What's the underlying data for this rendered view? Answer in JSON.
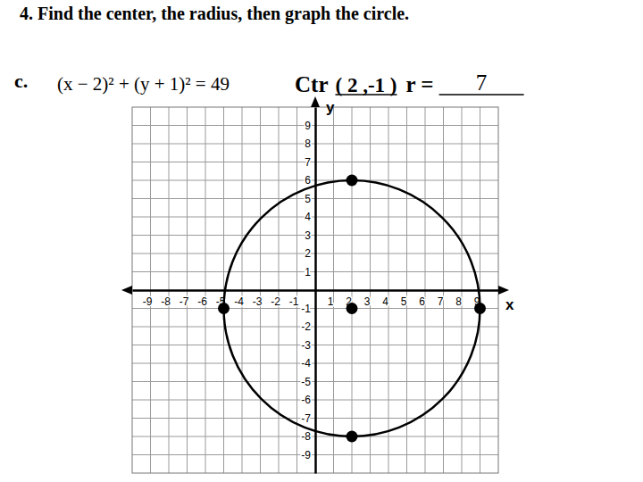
{
  "chart_data": {
    "type": "scatter",
    "title": "4. Find the center, the radius, then graph the circle.",
    "part": "c.",
    "equation": "(x − 2)² + (y + 1)² = 49",
    "center_label": "Ctr",
    "center_text": "( 2 ,-1 )",
    "radius_label": "r =",
    "radius_text": "7",
    "x_label": "x",
    "y_label": "y",
    "xlim": [
      -10,
      10
    ],
    "ylim": [
      -10,
      10
    ],
    "xticks": [
      -9,
      -8,
      -7,
      -6,
      -5,
      -4,
      -3,
      -2,
      -1,
      1,
      2,
      3,
      4,
      5,
      6,
      7,
      8,
      9
    ],
    "yticks": [
      -9,
      -8,
      -7,
      -6,
      -5,
      -4,
      -3,
      -2,
      -1,
      1,
      2,
      3,
      4,
      5,
      6,
      7,
      8,
      9
    ],
    "grid": true,
    "circle": {
      "center": [
        2,
        -1
      ],
      "radius": 7
    },
    "x": [
      2,
      2,
      2,
      -5,
      9
    ],
    "values": [
      -1,
      6,
      -8,
      -1,
      -1
    ],
    "color": "#000000",
    "marker": "circle"
  }
}
